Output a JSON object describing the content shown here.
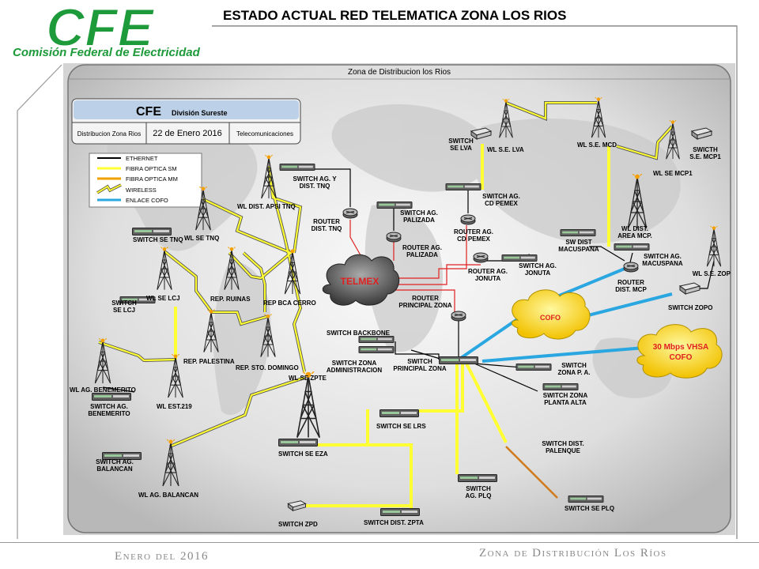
{
  "header": {
    "logo_text": "CFE",
    "logo_subtitle": "Comisión Federal de Electricidad",
    "title": "ESTADO ACTUAL RED TELEMATICA ZONA LOS RIOS"
  },
  "diagram": {
    "title": "Zona de Distribucion los Rios",
    "info_box": {
      "org": "CFE",
      "division": "División Sureste",
      "zone": "Distribucion Zona Rios",
      "date": "22 de Enero 2016",
      "dept": "Telecomunicaciones"
    },
    "legend": [
      {
        "label": "ETHERNET",
        "color": "#000000",
        "style": "line"
      },
      {
        "label": "FIBRA OPTICA SM",
        "color": "#ffff33",
        "style": "line"
      },
      {
        "label": "FIBRA OPTICA MM",
        "color": "#f0a000",
        "style": "line"
      },
      {
        "label": "WIRELESS",
        "color": "#ffff33",
        "style": "zigzag"
      },
      {
        "label": "ENLACE COFO",
        "color": "#2aa7e0",
        "style": "line"
      }
    ],
    "clouds": {
      "telmex": "TELMEX",
      "cofo": "COFO",
      "vhsa_line1": "30 Mbps VHSA",
      "vhsa_line2": "COFO"
    },
    "labels": {
      "wl_se_tnq": "WL SE TNQ",
      "switch_se_tnq": "SWITCH SE TNQ",
      "wl_dist_apsi_tnq": "WL DIST. APSI TNQ",
      "switch_ag_y_l1": "SWITCH AG. Y",
      "switch_ag_y_l2": "DIST. TNQ",
      "router_dist_tnq_l1": "ROUTER",
      "router_dist_tnq_l2": "DIST. TNQ",
      "switch_ag_palizada_l1": "SWITCH AG.",
      "switch_ag_palizada_l2": "PALIZADA",
      "router_ag_palizada_l1": "ROUTER AG.",
      "router_ag_palizada_l2": "PALIZADA",
      "switch_se_lva_l1": "SWITCH",
      "switch_se_lva_l2": "SE LVA",
      "wl_se_lva": "WL S.E. LVA",
      "wl_se_mcd": "WL S.E. MCD",
      "switch_ag_cd_pemex_l1": "SWITCH AG.",
      "switch_ag_cd_pemex_l2": "CD PEMEX",
      "router_ag_cd_pemex_l1": "ROUTER AG.",
      "router_ag_cd_pemex_l2": "CD PEMEX",
      "router_ag_jonuta_l1": "ROUTER AG.",
      "router_ag_jonuta_l2": "JONUTA",
      "switch_ag_jonuta_l1": "SWITCH AG.",
      "switch_ag_jonuta_l2": "JONUTA",
      "switch_se_mcp1_l1": "SWICTH",
      "switch_se_mcp1_l2": "S.E. MCP1",
      "wl_se_mcp1": "WL SE MCP1",
      "wl_dist_area_mcp_l1": "WL DIST.",
      "wl_dist_area_mcp_l2": "AREA MCP.",
      "sw_dist_macuspana_l1": "SW DIST",
      "sw_dist_macuspana_l2": "MACUSPANA",
      "switch_ag_macuspana_l1": "SWITCH AG.",
      "switch_ag_macuspana_l2": "MACUSPANA",
      "router_dist_mcp_l1": "ROUTER",
      "router_dist_mcp_l2": "DIST. MCP",
      "wl_se_zop": "WL S.E. ZOP",
      "switch_zopo": "SWITCH ZOPO",
      "wl_se_lcj": "WL SE LCJ",
      "switch_se_lcj_l1": "SWITCH",
      "switch_se_lcj_l2": "SE LCJ",
      "rep_ruinas": "REP. RUINAS",
      "rep_bca_cerro": "REP BCA CERRO",
      "rep_palestina": "REP. PALESTINA",
      "rep_sto_domingo": "REP. STO. DOMINGO",
      "wl_ag_benemerito": "WL AG. BENEMERITO",
      "switch_ag_benemerito_l1": "SWITCH AG.",
      "switch_ag_benemerito_l2": "BENEMERITO",
      "wl_est_219": "WL EST.219",
      "wl_se_zpte": "WL SE ZPTE",
      "router_principal_l1": "ROUTER",
      "router_principal_l2": "PRINCIPAL ZONA",
      "switch_backbone": "SWITCH BACKBONE",
      "switch_zona_admin_l1": "SWITCH ZONA",
      "switch_zona_admin_l2": "ADMINISTRACION",
      "switch_principal_l1": "SWITCH",
      "switch_principal_l2": "PRINCIPAL ZONA",
      "switch_zona_pa_l1": "SWITCH",
      "switch_zona_pa_l2": "ZONA P. A.",
      "switch_zona_planta_l1": "SWITCH ZONA",
      "switch_zona_planta_l2": "PLANTA ALTA",
      "switch_se_lrs": "SWITCH SE LRS",
      "switch_ag_balancan_l1": "SWITCH AG.",
      "switch_ag_balancan_l2": "BALANCAN",
      "switch_se_eza": "SWITCH SE EZA",
      "wl_ag_balancan": "WL AG. BALANCAN",
      "switch_dist_palenque_l1": "SWITCH DIST.",
      "switch_dist_palenque_l2": "PALENQUE",
      "switch_ag_plq_l1": "SWITCH",
      "switch_ag_plq_l2": "AG. PLQ",
      "switch_se_plq": "SWITCH SE PLQ",
      "switch_zpd": "SWITCH ZPD",
      "switch_dist_zpta": "SWITCH DIST. ZPTA"
    }
  },
  "footer": {
    "left": "Enero del 2016",
    "right": "Zona de Distribución Los Ríos"
  }
}
